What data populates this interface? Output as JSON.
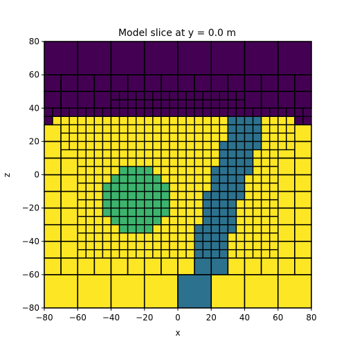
{
  "chart_data": {
    "type": "heatmap",
    "title": "Model slice at y = 0.0 m",
    "xlabel": "x",
    "ylabel": "z",
    "xlim": [
      -80,
      80
    ],
    "ylim": [
      -80,
      80
    ],
    "x_ticks": [
      -80,
      -60,
      -40,
      -20,
      0,
      20,
      40,
      60,
      80
    ],
    "y_ticks": [
      -80,
      -60,
      -40,
      -20,
      0,
      20,
      40,
      60,
      80
    ],
    "grid": false,
    "colors": {
      "air": "#440154",
      "background": "#fde725",
      "block": "#3cb46e",
      "dike": "#2c728e",
      "cell_edge": "#000000"
    },
    "fine_cell_size": 5,
    "regions": [
      {
        "name": "air",
        "z_min": 35,
        "z_max": 80,
        "x_min": -80,
        "x_max": 80
      },
      {
        "name": "air-sliver-left",
        "z_min": 30,
        "z_max": 35,
        "x_min": -80,
        "x_max": -75
      },
      {
        "name": "air-sliver-right",
        "z_min": 30,
        "z_max": 35,
        "x_min": 70,
        "x_max": 80
      },
      {
        "name": "block",
        "rows": [
          {
            "z_min": 0,
            "z_max": 5,
            "x_min": -35,
            "x_max": -15
          },
          {
            "z_min": -5,
            "z_max": 0,
            "x_min": -40,
            "x_max": -10
          },
          {
            "z_min": -10,
            "z_max": -5,
            "x_min": -45,
            "x_max": -5
          },
          {
            "z_min": -15,
            "z_max": -10,
            "x_min": -45,
            "x_max": -5
          },
          {
            "z_min": -20,
            "z_max": -15,
            "x_min": -45,
            "x_max": -5
          },
          {
            "z_min": -25,
            "z_max": -20,
            "x_min": -45,
            "x_max": -5
          },
          {
            "z_min": -30,
            "z_max": -25,
            "x_min": -40,
            "x_max": -10
          },
          {
            "z_min": -35,
            "z_max": -30,
            "x_min": -35,
            "x_max": -15
          }
        ]
      },
      {
        "name": "dike",
        "rows": [
          {
            "z_min": 35,
            "z_max": 40,
            "x_min": 35,
            "x_max": 55
          },
          {
            "z_min": 30,
            "z_max": 35,
            "x_min": 30,
            "x_max": 50
          },
          {
            "z_min": 25,
            "z_max": 30,
            "x_min": 30,
            "x_max": 50
          },
          {
            "z_min": 20,
            "z_max": 25,
            "x_min": 30,
            "x_max": 50
          },
          {
            "z_min": 15,
            "z_max": 20,
            "x_min": 25,
            "x_max": 50
          },
          {
            "z_min": 10,
            "z_max": 15,
            "x_min": 25,
            "x_max": 45
          },
          {
            "z_min": 5,
            "z_max": 10,
            "x_min": 25,
            "x_max": 45
          },
          {
            "z_min": 0,
            "z_max": 5,
            "x_min": 20,
            "x_max": 45
          },
          {
            "z_min": -5,
            "z_max": 0,
            "x_min": 20,
            "x_max": 40
          },
          {
            "z_min": -10,
            "z_max": -5,
            "x_min": 20,
            "x_max": 40
          },
          {
            "z_min": -15,
            "z_max": -10,
            "x_min": 15,
            "x_max": 40
          },
          {
            "z_min": -20,
            "z_max": -15,
            "x_min": 15,
            "x_max": 35
          },
          {
            "z_min": -25,
            "z_max": -20,
            "x_min": 15,
            "x_max": 35
          },
          {
            "z_min": -30,
            "z_max": -25,
            "x_min": 15,
            "x_max": 35
          },
          {
            "z_min": -35,
            "z_max": -30,
            "x_min": 10,
            "x_max": 35
          },
          {
            "z_min": -40,
            "z_max": -35,
            "x_min": 10,
            "x_max": 30
          },
          {
            "z_min": -45,
            "z_max": -40,
            "x_min": 10,
            "x_max": 30
          },
          {
            "z_min": -50,
            "z_max": -45,
            "x_min": 10,
            "x_max": 30
          },
          {
            "z_min": -60,
            "z_max": -50,
            "x_min": 10,
            "x_max": 30
          },
          {
            "z_min": -80,
            "z_max": -60,
            "x_min": 0,
            "x_max": 20
          }
        ]
      }
    ]
  }
}
